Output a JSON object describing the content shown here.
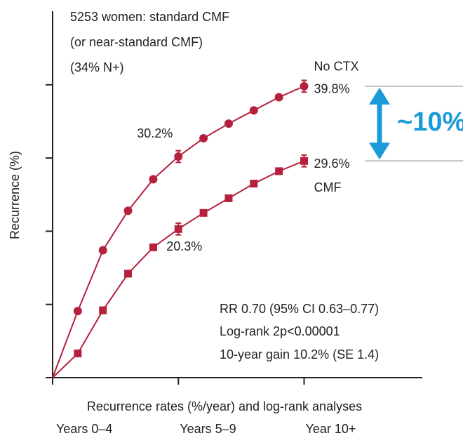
{
  "chart_data": {
    "type": "line",
    "ylabel": "Recurrence (%)",
    "xlabel": "Recurrence rates (%/year) and log-rank analyses",
    "x": [
      0,
      1,
      2,
      3,
      4,
      5,
      6,
      7,
      8,
      9,
      10
    ],
    "xlim": [
      0,
      14.7
    ],
    "xticks": [
      0,
      5,
      10
    ],
    "x_period_labels": [
      "Years 0–4",
      "Years 5–9",
      "Year 10+"
    ],
    "ylim": [
      0,
      50
    ],
    "yticks": [
      0,
      10,
      20,
      30,
      40
    ],
    "series": [
      {
        "name": "No CTX",
        "color": "#b5213d",
        "marker": "circle",
        "values": [
          0,
          9.1,
          17.4,
          22.8,
          27.1,
          30.2,
          32.7,
          34.7,
          36.5,
          38.3,
          39.8
        ],
        "errors": [
          null,
          null,
          null,
          null,
          null,
          0.8,
          null,
          null,
          null,
          null,
          0.8
        ],
        "value_labels": [
          null,
          null,
          null,
          null,
          null,
          "30.2%",
          null,
          null,
          null,
          null,
          "39.8%"
        ]
      },
      {
        "name": "CMF",
        "color": "#b5213d",
        "marker": "square",
        "values": [
          0,
          3.3,
          9.2,
          14.2,
          17.8,
          20.3,
          22.5,
          24.5,
          26.5,
          28.2,
          29.6
        ],
        "errors": [
          null,
          null,
          null,
          null,
          null,
          0.8,
          null,
          null,
          null,
          null,
          0.8
        ],
        "value_labels": [
          null,
          null,
          null,
          null,
          null,
          "20.3%",
          null,
          null,
          null,
          null,
          "29.6%"
        ]
      }
    ],
    "annotations": {
      "population": [
        "5253 women: standard CMF",
        "(or near-standard CMF)",
        "(34% N+)"
      ],
      "stats": [
        "RR 0.70 (95% CI 0.63–0.77)",
        "Log-rank 2p<0.00001",
        "10-year gain 10.2% (SE 1.4)"
      ],
      "difference": "~10%",
      "difference_color": "#1a9ad6"
    }
  }
}
